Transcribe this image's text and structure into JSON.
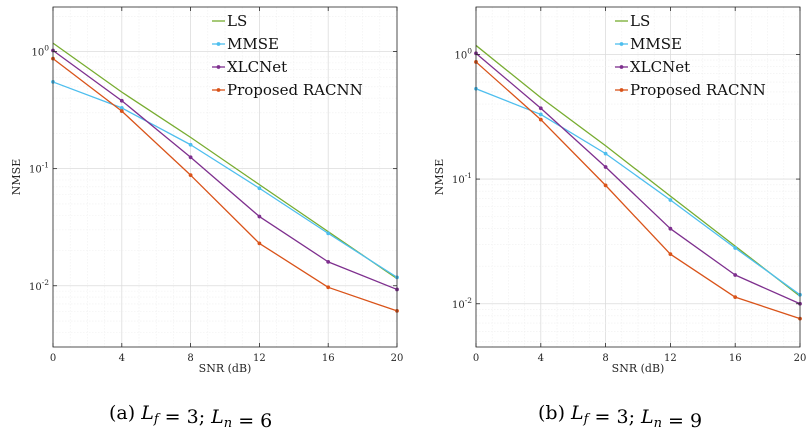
{
  "chart_data": [
    {
      "type": "line",
      "caption": {
        "label": "(a)",
        "expr": [
          {
            "t": "L",
            "i": 1,
            "s": "f"
          },
          {
            "t": " = 3; "
          },
          {
            "t": "L",
            "i": 1,
            "s": "n"
          },
          {
            "t": " = 6"
          }
        ]
      },
      "xlabel": "SNR (dB)",
      "ylabel": "NMSE",
      "x_ticks": [
        "0",
        "4",
        "8",
        "12",
        "16",
        "20"
      ],
      "y_ticks": [
        "10^0",
        "10^-1",
        "10^-2"
      ],
      "xlim": [
        0,
        20
      ],
      "ylim": [
        0.003,
        2.4
      ],
      "y_scale": "log",
      "grid": true,
      "legend_position": "top-right",
      "x": [
        0,
        4,
        8,
        12,
        16,
        20
      ],
      "series": [
        {
          "name": "LS",
          "color": "#77ac30",
          "marker": "none",
          "values": [
            1.18,
            0.45,
            0.185,
            0.073,
            0.029,
            0.0115
          ]
        },
        {
          "name": "MMSE",
          "color": "#4dbeee",
          "marker": "dot",
          "values": [
            0.55,
            0.33,
            0.16,
            0.068,
            0.028,
            0.0118
          ]
        },
        {
          "name": "XLCNet",
          "color": "#7e2f8e",
          "marker": "dot",
          "values": [
            1.02,
            0.38,
            0.125,
            0.039,
            0.016,
            0.0093
          ]
        },
        {
          "name": "Proposed RACNN",
          "color": "#d95319",
          "marker": "dot",
          "values": [
            0.87,
            0.31,
            0.088,
            0.023,
            0.0097,
            0.0061
          ]
        }
      ]
    },
    {
      "type": "line",
      "caption": {
        "label": "(b)",
        "expr": [
          {
            "t": "L",
            "i": 1,
            "s": "f"
          },
          {
            "t": " = 3; "
          },
          {
            "t": "L",
            "i": 1,
            "s": "n"
          },
          {
            "t": " = 9"
          }
        ]
      },
      "xlabel": "SNR (dB)",
      "ylabel": "NMSE",
      "x_ticks": [
        "0",
        "4",
        "8",
        "12",
        "16",
        "20"
      ],
      "y_ticks": [
        "10^0",
        "10^-1",
        "10^-2"
      ],
      "xlim": [
        0,
        20
      ],
      "ylim": [
        0.0045,
        2.4
      ],
      "y_scale": "log",
      "grid": true,
      "legend_position": "top-right",
      "x": [
        0,
        4,
        8,
        12,
        16,
        20
      ],
      "series": [
        {
          "name": "LS",
          "color": "#77ac30",
          "marker": "none",
          "values": [
            1.18,
            0.45,
            0.185,
            0.073,
            0.029,
            0.0115
          ]
        },
        {
          "name": "MMSE",
          "color": "#4dbeee",
          "marker": "dot",
          "values": [
            0.53,
            0.33,
            0.16,
            0.068,
            0.028,
            0.0118
          ]
        },
        {
          "name": "XLCNet",
          "color": "#7e2f8e",
          "marker": "dot",
          "values": [
            1.02,
            0.37,
            0.125,
            0.04,
            0.017,
            0.01
          ]
        },
        {
          "name": "Proposed RACNN",
          "color": "#d95319",
          "marker": "dot",
          "values": [
            0.87,
            0.3,
            0.089,
            0.025,
            0.0113,
            0.0076
          ]
        }
      ]
    }
  ]
}
